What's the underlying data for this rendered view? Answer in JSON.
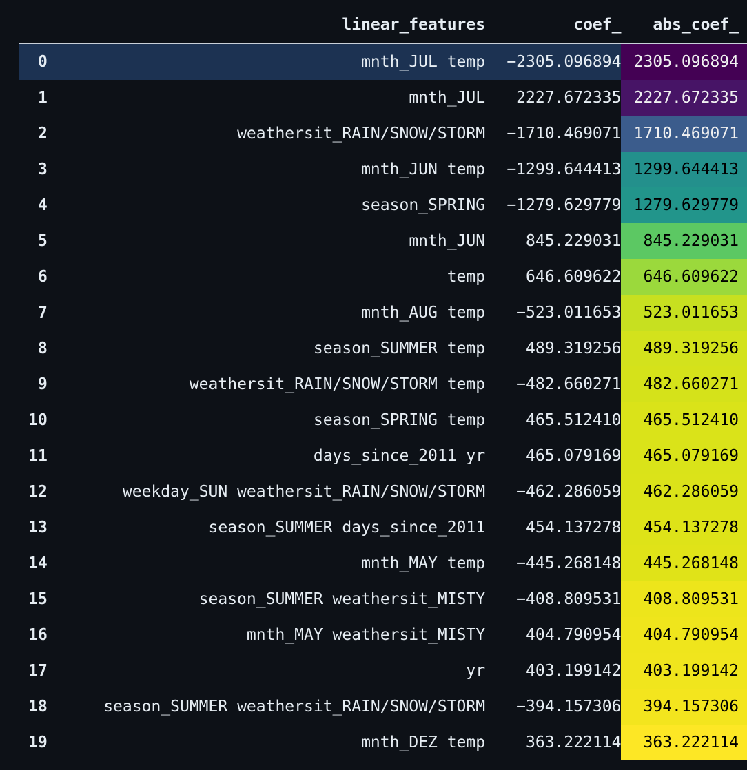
{
  "table": {
    "headers": {
      "index": "",
      "linear_features": "linear_features",
      "coef": "coef_",
      "abs_coef": "abs_coef_"
    },
    "selected_row": 0,
    "rows": [
      {
        "index": "0",
        "feature": "mnth_JUL temp",
        "coef": "−2305.096894",
        "abs_coef": "2305.096894",
        "abs_bg": "#440154",
        "abs_fg": "#f1f1f1"
      },
      {
        "index": "1",
        "feature": "mnth_JUL",
        "coef": "2227.672335",
        "abs_coef": "2227.672335",
        "abs_bg": "#471466",
        "abs_fg": "#f1f1f1"
      },
      {
        "index": "2",
        "feature": "weathersit_RAIN/SNOW/STORM",
        "coef": "−1710.469071",
        "abs_coef": "1710.469071",
        "abs_bg": "#3b5c8c",
        "abs_fg": "#f1f1f1"
      },
      {
        "index": "3",
        "feature": "mnth_JUN temp",
        "coef": "−1299.644413",
        "abs_coef": "1299.644413",
        "abs_bg": "#23908c",
        "abs_fg": "#000000"
      },
      {
        "index": "4",
        "feature": "season_SPRING",
        "coef": "−1279.629779",
        "abs_coef": "1279.629779",
        "abs_bg": "#22958b",
        "abs_fg": "#000000"
      },
      {
        "index": "5",
        "feature": "mnth_JUN",
        "coef": "845.229031",
        "abs_coef": "845.229031",
        "abs_bg": "#5cc863",
        "abs_fg": "#000000"
      },
      {
        "index": "6",
        "feature": "temp",
        "coef": "646.609622",
        "abs_coef": "646.609622",
        "abs_bg": "#9bd93c",
        "abs_fg": "#000000"
      },
      {
        "index": "7",
        "feature": "mnth_AUG temp",
        "coef": "−523.011653",
        "abs_coef": "523.011653",
        "abs_bg": "#c7e020",
        "abs_fg": "#000000"
      },
      {
        "index": "8",
        "feature": "season_SUMMER temp",
        "coef": "489.319256",
        "abs_coef": "489.319256",
        "abs_bg": "#d3e21c",
        "abs_fg": "#000000"
      },
      {
        "index": "9",
        "feature": "weathersit_RAIN/SNOW/STORM temp",
        "coef": "−482.660271",
        "abs_coef": "482.660271",
        "abs_bg": "#d5e21a",
        "abs_fg": "#000000"
      },
      {
        "index": "10",
        "feature": "season_SPRING temp",
        "coef": "465.512410",
        "abs_coef": "465.512410",
        "abs_bg": "#dae319",
        "abs_fg": "#000000"
      },
      {
        "index": "11",
        "feature": "days_since_2011 yr",
        "coef": "465.079169",
        "abs_coef": "465.079169",
        "abs_bg": "#dae319",
        "abs_fg": "#000000"
      },
      {
        "index": "12",
        "feature": "weekday_SUN weathersit_RAIN/SNOW/STORM",
        "coef": "−462.286059",
        "abs_coef": "462.286059",
        "abs_bg": "#dbe319",
        "abs_fg": "#000000"
      },
      {
        "index": "13",
        "feature": "season_SUMMER days_since_2011",
        "coef": "454.137278",
        "abs_coef": "454.137278",
        "abs_bg": "#dee318",
        "abs_fg": "#000000"
      },
      {
        "index": "14",
        "feature": "mnth_MAY temp",
        "coef": "−445.268148",
        "abs_coef": "445.268148",
        "abs_bg": "#e0e318",
        "abs_fg": "#000000"
      },
      {
        "index": "15",
        "feature": "season_SUMMER weathersit_MISTY",
        "coef": "−408.809531",
        "abs_coef": "408.809531",
        "abs_bg": "#ede51b",
        "abs_fg": "#000000"
      },
      {
        "index": "16",
        "feature": "mnth_MAY weathersit_MISTY",
        "coef": "404.790954",
        "abs_coef": "404.790954",
        "abs_bg": "#efe51c",
        "abs_fg": "#000000"
      },
      {
        "index": "17",
        "feature": "yr",
        "coef": "403.199142",
        "abs_coef": "403.199142",
        "abs_bg": "#f0e51d",
        "abs_fg": "#000000"
      },
      {
        "index": "18",
        "feature": "season_SUMMER weathersit_RAIN/SNOW/STORM",
        "coef": "−394.157306",
        "abs_coef": "394.157306",
        "abs_bg": "#f3e51e",
        "abs_fg": "#000000"
      },
      {
        "index": "19",
        "feature": "mnth_DEZ temp",
        "coef": "363.222114",
        "abs_coef": "363.222114",
        "abs_bg": "#fde725",
        "abs_fg": "#000000"
      }
    ]
  }
}
